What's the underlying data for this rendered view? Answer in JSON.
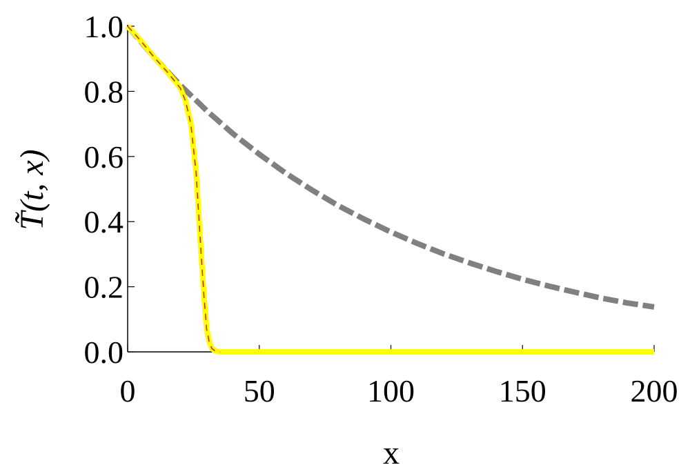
{
  "chart_data": {
    "type": "line",
    "x_label": "x",
    "y_label": "T̃(t, x)",
    "xlim": [
      0,
      200
    ],
    "ylim": [
      0,
      1
    ],
    "xticks": [
      0,
      50,
      100,
      150,
      200
    ],
    "yticks": [
      {
        "value": 0,
        "label": "0.0"
      },
      0.2,
      0.4,
      0.6,
      0.8,
      {
        "value": 1,
        "label": "1.0"
      }
    ],
    "series": [
      {
        "color": "#808080",
        "dashed": true,
        "width": 8,
        "x": [
          0,
          10,
          20,
          30,
          40,
          50,
          60,
          70,
          80,
          90,
          100,
          110,
          120,
          130,
          140,
          150,
          160,
          170,
          180,
          190,
          200
        ],
        "values": [
          1,
          0.905,
          0.819,
          0.741,
          0.67,
          0.607,
          0.549,
          0.497,
          0.449,
          0.407,
          0.368,
          0.333,
          0.301,
          0.273,
          0.247,
          0.223,
          0.202,
          0.183,
          0.165,
          0.15,
          0.138
        ]
      },
      {
        "color": "#ffff00",
        "dashed": false,
        "width": 8,
        "x": [
          0,
          5,
          10,
          15,
          18,
          20,
          22,
          24,
          26,
          27,
          28,
          29,
          30,
          31,
          32,
          33,
          34,
          35,
          50,
          100,
          150,
          200
        ],
        "values": [
          1,
          0.955,
          0.905,
          0.86,
          0.83,
          0.81,
          0.77,
          0.7,
          0.55,
          0.42,
          0.29,
          0.17,
          0.07,
          0.03,
          0.01,
          0.004,
          0.001,
          0,
          0,
          0,
          0,
          0
        ]
      },
      {
        "color": "#cc2222",
        "dashed": true,
        "width": 1.5,
        "x": [
          0,
          5,
          10,
          15,
          18,
          20,
          22,
          24,
          26,
          27,
          28,
          29,
          30,
          31,
          32,
          33,
          34,
          35
        ],
        "values": [
          1,
          0.955,
          0.905,
          0.86,
          0.83,
          0.81,
          0.77,
          0.7,
          0.55,
          0.42,
          0.29,
          0.17,
          0.07,
          0.03,
          0.01,
          0.004,
          0.001,
          0
        ]
      }
    ]
  }
}
